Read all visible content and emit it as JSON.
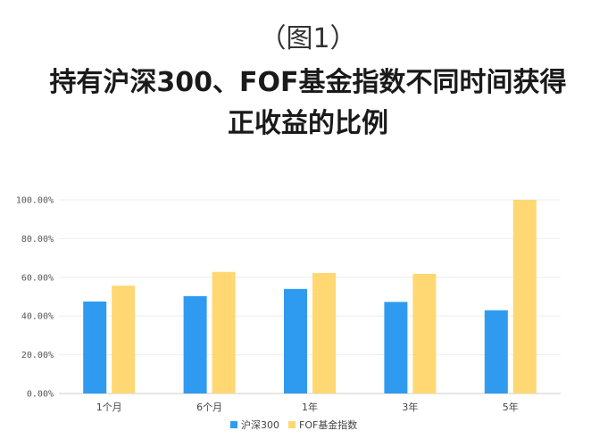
{
  "figure_label": "（图1）",
  "title_line1": "持有沪深300、FOF基金指数不同时间获得",
  "title_line2": "正收益的比例",
  "colors": {
    "series1": "#2f9bf0",
    "series2": "#ffd873",
    "grid": "#eeeeee",
    "axis": "#cccccc"
  },
  "chart_data": {
    "type": "bar",
    "categories": [
      "1个月",
      "6个月",
      "1年",
      "3年",
      "5年"
    ],
    "series": [
      {
        "name": "沪深300",
        "values": [
          47.5,
          50.3,
          54.0,
          47.3,
          43.0
        ]
      },
      {
        "name": "FOF基金指数",
        "values": [
          55.7,
          62.8,
          62.2,
          61.8,
          100.0
        ]
      }
    ],
    "y_ticks": [
      "0.00%",
      "20.00%",
      "40.00%",
      "60.00%",
      "80.00%",
      "100.00%"
    ],
    "ylim": [
      0,
      100
    ],
    "grid": true,
    "legend_position": "bottom"
  }
}
